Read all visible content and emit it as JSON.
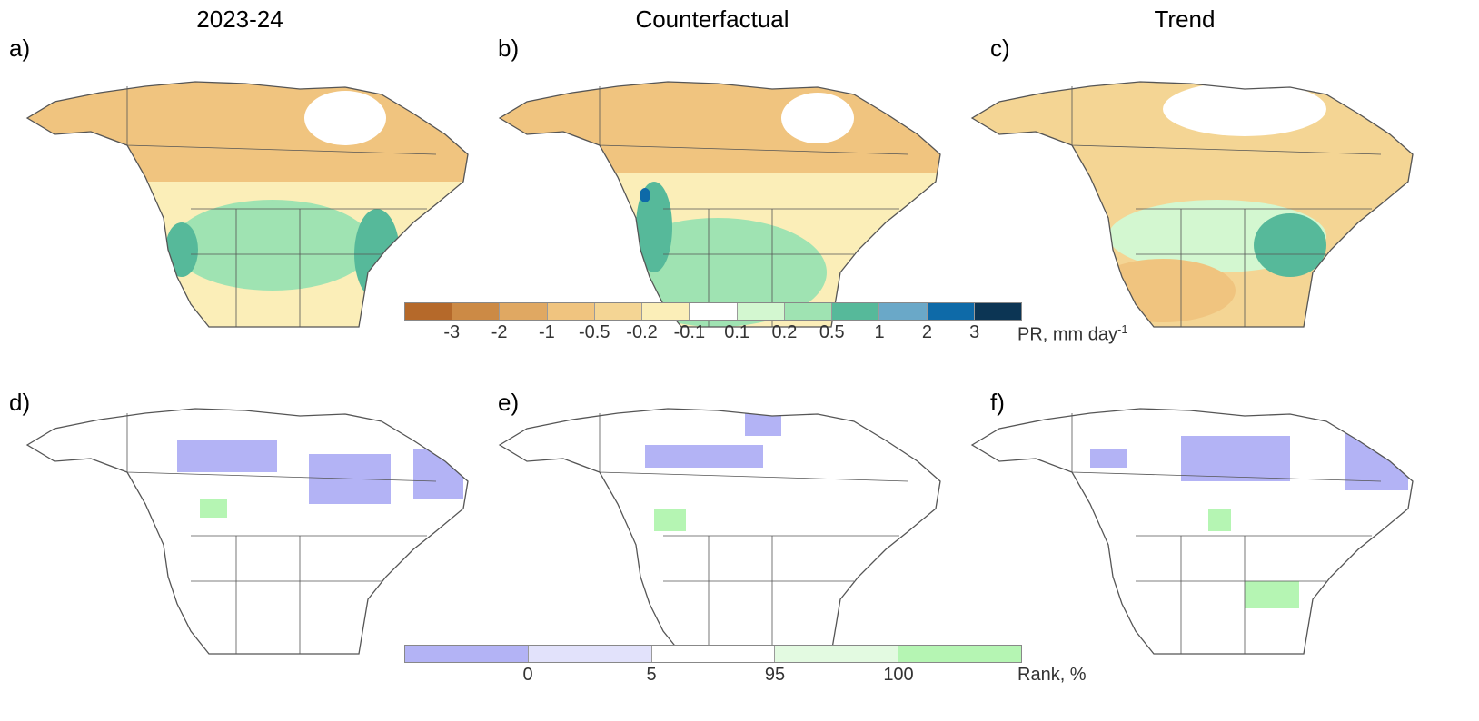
{
  "columns": {
    "col1_title": "2023-24",
    "col2_title": "Counterfactual",
    "col3_title": "Trend"
  },
  "panels": {
    "a": "a)",
    "b": "b)",
    "c": "c)",
    "d": "d)",
    "e": "e)",
    "f": "f)"
  },
  "precip_colorbar": {
    "unit_label": "PR, mm day",
    "unit_superscript": "-1",
    "ticks": [
      "-3",
      "-2",
      "-1",
      "-0.5",
      "-0.2",
      "-0.1",
      "0.1",
      "0.2",
      "0.5",
      "1",
      "2",
      "3"
    ],
    "colors": [
      "#b5692a",
      "#cc8a45",
      "#e0a862",
      "#f0c47f",
      "#f4d594",
      "#fbeeb8",
      "#ffffff",
      "#d3f7d0",
      "#9fe3b2",
      "#56b99a",
      "#6aa8c8",
      "#0e6aa8",
      "#0c3554"
    ]
  },
  "rank_colorbar": {
    "unit_label": "Rank, %",
    "ticks": [
      "0",
      "5",
      "95",
      "100"
    ],
    "colors": [
      "#b3b3f5",
      "#e2e2fb",
      "#ffffff",
      "#e3fae1",
      "#b5f5b3"
    ]
  },
  "colors": {
    "land_outline": "#555555",
    "dry": "#f0c47f",
    "wet": "#9fe3b2",
    "very_wet": "#56b99a",
    "low_rank": "#b3b3f5",
    "high_rank": "#b5f5b3"
  }
}
